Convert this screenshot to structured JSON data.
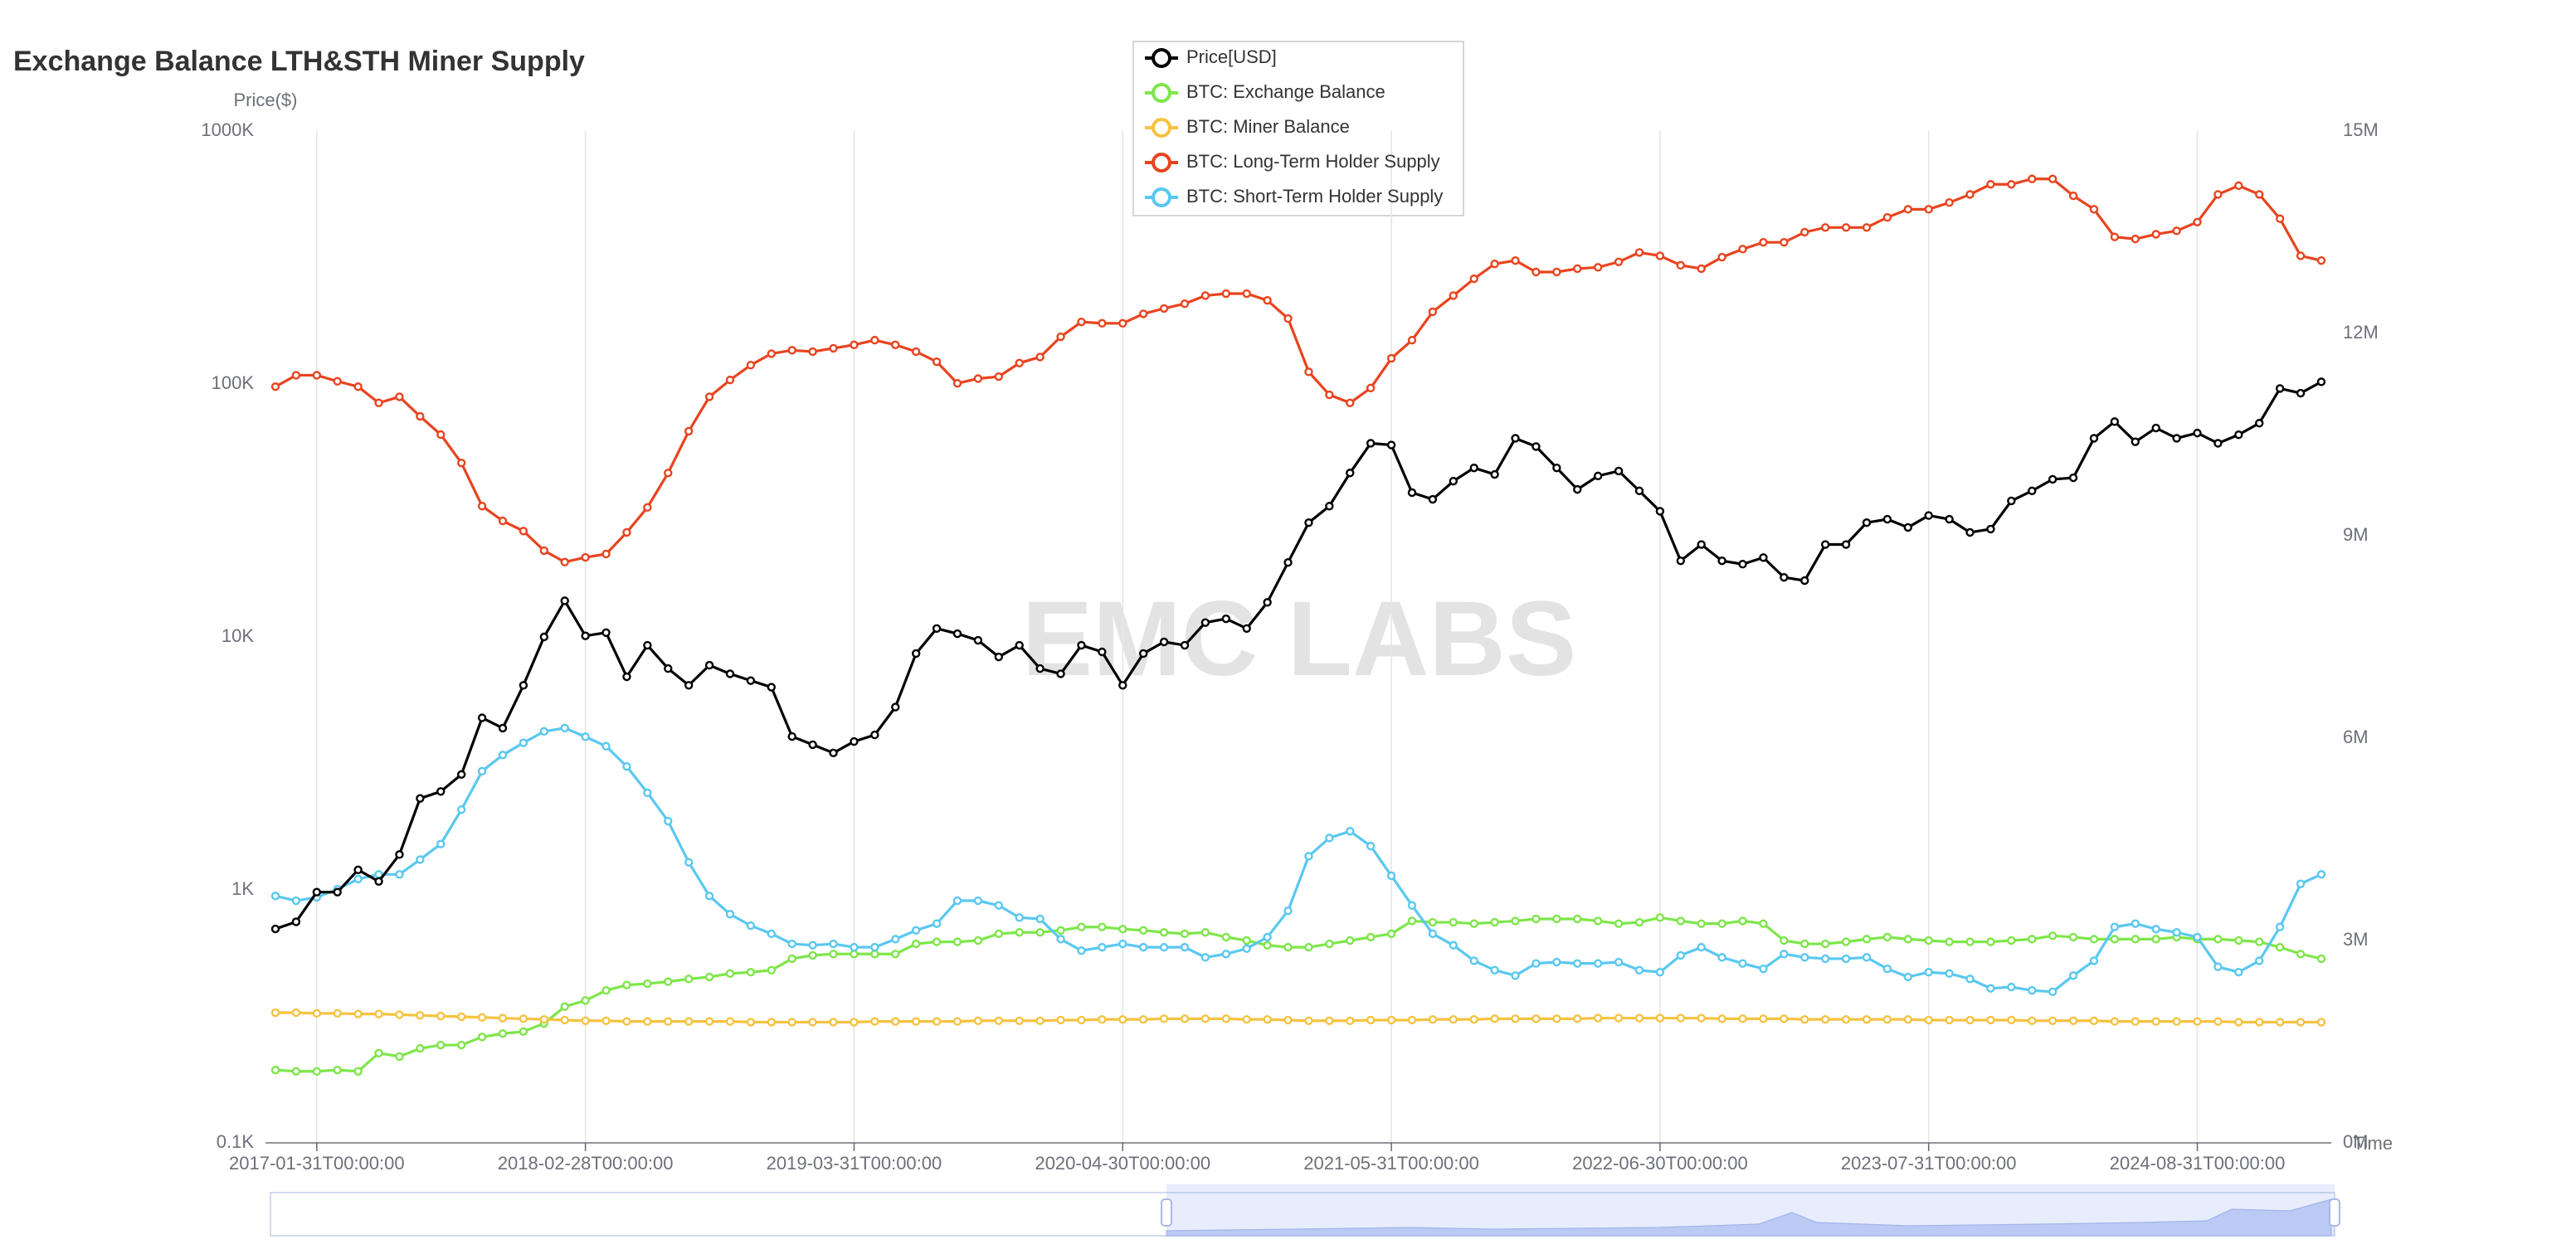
{
  "chart_data": {
    "type": "line",
    "title": "Exchange Balance LTH&STH Miner Supply",
    "watermark": "EMC LABS",
    "ylabel": "Price($)",
    "xlabel": "Time",
    "ylog": true,
    "grid": true,
    "legend": "top",
    "ylim": [
      100,
      1000000
    ],
    "yticks": [
      {
        "value": 100,
        "label": "0.1K"
      },
      {
        "value": 1000,
        "label": "1K"
      },
      {
        "value": 10000,
        "label": "10K"
      },
      {
        "value": 100000,
        "label": "100K"
      },
      {
        "value": 1000000,
        "label": "1000K"
      }
    ],
    "y2lim": [
      0,
      15000000
    ],
    "y2ticks": [
      {
        "value": 0,
        "label": "0M"
      },
      {
        "value": 3000000,
        "label": "3M"
      },
      {
        "value": 6000000,
        "label": "6M"
      },
      {
        "value": 9000000,
        "label": "9M"
      },
      {
        "value": 12000000,
        "label": "12M"
      },
      {
        "value": 15000000,
        "label": "15M"
      }
    ],
    "categories": [
      null,
      null,
      "2017-01-31T00:00:00",
      null,
      null,
      null,
      null,
      null,
      null,
      null,
      null,
      null,
      null,
      null,
      null,
      "2018-02-28T00:00:00",
      null,
      null,
      null,
      null,
      null,
      null,
      null,
      null,
      null,
      null,
      null,
      null,
      "2019-03-31T00:00:00",
      null,
      null,
      null,
      null,
      null,
      null,
      null,
      null,
      null,
      null,
      null,
      null,
      "2020-04-30T00:00:00",
      null,
      null,
      null,
      null,
      null,
      null,
      null,
      null,
      null,
      null,
      null,
      null,
      "2021-05-31T00:00:00",
      null,
      null,
      null,
      null,
      null,
      null,
      null,
      null,
      null,
      null,
      null,
      null,
      "2022-06-30T00:00:00",
      null,
      null,
      null,
      null,
      null,
      null,
      null,
      null,
      null,
      null,
      null,
      null,
      "2023-07-31T00:00:00",
      null,
      null,
      null,
      null,
      null,
      null,
      null,
      null,
      null,
      null,
      null,
      null,
      "2024-08-31T00:00:00",
      null,
      null,
      null,
      null,
      null,
      null
    ],
    "series": [
      {
        "name": "Price[USD]",
        "color": "#000000",
        "values": [
          701,
          748,
          980,
          980,
          1200,
          1080,
          1380,
          2300,
          2450,
          2860,
          4790,
          4360,
          6440,
          10000,
          13900,
          10100,
          10400,
          6960,
          9270,
          7500,
          6440,
          7730,
          7150,
          6720,
          6330,
          4040,
          3750,
          3480,
          3860,
          4100,
          5280,
          8600,
          10800,
          10300,
          9700,
          8340,
          9270,
          7500,
          7150,
          9270,
          8730,
          6440,
          8600,
          9560,
          9270,
          11400,
          11800,
          10800,
          13700,
          19700,
          28300,
          32900,
          44500,
          58300,
          57400,
          37200,
          35000,
          41300,
          46600,
          43900,
          61000,
          56600,
          46600,
          38300,
          43300,
          45300,
          37800,
          31400,
          20000,
          23200,
          20000,
          19400,
          20600,
          17200,
          16700,
          23200,
          23200,
          28300,
          29200,
          27100,
          30200,
          29200,
          25900,
          26700,
          34500,
          37800,
          42000,
          42600,
          61000,
          71000,
          59100,
          67000,
          61000,
          64000,
          58300,
          63000,
          70000,
          96000,
          92000,
          102000
        ]
      },
      {
        "name": "BTC: Exchange Balance",
        "color": "#7ee64a",
        "axis": "y2",
        "values": [
          1080000,
          1060000,
          1060000,
          1080000,
          1060000,
          1330000,
          1280000,
          1400000,
          1450000,
          1450000,
          1570000,
          1620000,
          1650000,
          1770000,
          2020000,
          2110000,
          2260000,
          2340000,
          2360000,
          2390000,
          2430000,
          2460000,
          2510000,
          2530000,
          2560000,
          2730000,
          2780000,
          2800000,
          2800000,
          2800000,
          2800000,
          2950000,
          2980000,
          2980000,
          3000000,
          3100000,
          3120000,
          3120000,
          3150000,
          3200000,
          3200000,
          3170000,
          3150000,
          3120000,
          3100000,
          3120000,
          3050000,
          3000000,
          2930000,
          2900000,
          2900000,
          2950000,
          3000000,
          3050000,
          3100000,
          3290000,
          3270000,
          3270000,
          3250000,
          3270000,
          3290000,
          3320000,
          3320000,
          3320000,
          3290000,
          3250000,
          3270000,
          3340000,
          3290000,
          3250000,
          3250000,
          3290000,
          3250000,
          3000000,
          2950000,
          2950000,
          2980000,
          3020000,
          3050000,
          3020000,
          3000000,
          2980000,
          2980000,
          2980000,
          3000000,
          3020000,
          3070000,
          3050000,
          3020000,
          3020000,
          3020000,
          3020000,
          3050000,
          3020000,
          3020000,
          3000000,
          2980000,
          2900000,
          2800000,
          2730000
        ]
      },
      {
        "name": "BTC: Miner Balance",
        "color": "#f5c342",
        "axis": "y2",
        "values": [
          1930000,
          1930000,
          1920000,
          1920000,
          1910000,
          1910000,
          1900000,
          1890000,
          1880000,
          1870000,
          1860000,
          1850000,
          1840000,
          1830000,
          1820000,
          1810000,
          1810000,
          1800000,
          1800000,
          1800000,
          1800000,
          1800000,
          1800000,
          1790000,
          1790000,
          1790000,
          1790000,
          1790000,
          1790000,
          1800000,
          1800000,
          1800000,
          1800000,
          1800000,
          1810000,
          1810000,
          1810000,
          1810000,
          1820000,
          1820000,
          1830000,
          1830000,
          1830000,
          1840000,
          1840000,
          1840000,
          1840000,
          1830000,
          1830000,
          1820000,
          1810000,
          1810000,
          1810000,
          1820000,
          1820000,
          1820000,
          1830000,
          1830000,
          1830000,
          1840000,
          1840000,
          1840000,
          1840000,
          1840000,
          1850000,
          1850000,
          1850000,
          1850000,
          1850000,
          1850000,
          1840000,
          1840000,
          1840000,
          1840000,
          1830000,
          1830000,
          1830000,
          1830000,
          1830000,
          1830000,
          1820000,
          1820000,
          1820000,
          1820000,
          1820000,
          1810000,
          1810000,
          1810000,
          1810000,
          1800000,
          1800000,
          1800000,
          1800000,
          1800000,
          1800000,
          1790000,
          1790000,
          1790000,
          1790000,
          1790000
        ]
      },
      {
        "name": "BTC: Long-Term Holder Supply",
        "color": "#e8441f",
        "axis": "y2",
        "values": [
          11210000,
          11380000,
          11380000,
          11290000,
          11210000,
          10970000,
          11060000,
          10770000,
          10500000,
          10080000,
          9440000,
          9220000,
          9070000,
          8780000,
          8610000,
          8680000,
          8730000,
          9050000,
          9420000,
          9930000,
          10550000,
          11060000,
          11310000,
          11530000,
          11700000,
          11750000,
          11730000,
          11780000,
          11830000,
          11900000,
          11830000,
          11730000,
          11580000,
          11260000,
          11330000,
          11360000,
          11560000,
          11650000,
          11950000,
          12170000,
          12150000,
          12150000,
          12290000,
          12370000,
          12440000,
          12560000,
          12590000,
          12590000,
          12490000,
          12220000,
          11430000,
          11090000,
          10970000,
          11190000,
          11630000,
          11900000,
          12320000,
          12560000,
          12810000,
          13030000,
          13080000,
          12910000,
          12910000,
          12960000,
          12980000,
          13060000,
          13200000,
          13150000,
          13010000,
          12960000,
          13130000,
          13250000,
          13350000,
          13350000,
          13500000,
          13570000,
          13570000,
          13570000,
          13720000,
          13840000,
          13840000,
          13940000,
          14060000,
          14210000,
          14210000,
          14290000,
          14290000,
          14040000,
          13840000,
          13430000,
          13400000,
          13470000,
          13520000,
          13650000,
          14060000,
          14190000,
          14060000,
          13700000,
          13150000,
          13080000
        ]
      },
      {
        "name": "BTC: Short-Term Holder Supply",
        "color": "#5ac8f0",
        "axis": "y2",
        "values": [
          3660000,
          3590000,
          3640000,
          3760000,
          3910000,
          3980000,
          3980000,
          4200000,
          4430000,
          4940000,
          5510000,
          5750000,
          5930000,
          6100000,
          6150000,
          6020000,
          5880000,
          5580000,
          5190000,
          4770000,
          4160000,
          3660000,
          3390000,
          3220000,
          3100000,
          2950000,
          2930000,
          2950000,
          2900000,
          2900000,
          3020000,
          3150000,
          3250000,
          3590000,
          3590000,
          3520000,
          3340000,
          3320000,
          3020000,
          2850000,
          2900000,
          2950000,
          2900000,
          2900000,
          2900000,
          2750000,
          2800000,
          2880000,
          3050000,
          3440000,
          4250000,
          4520000,
          4620000,
          4400000,
          3960000,
          3520000,
          3100000,
          2930000,
          2700000,
          2560000,
          2480000,
          2660000,
          2680000,
          2660000,
          2660000,
          2680000,
          2560000,
          2530000,
          2780000,
          2900000,
          2750000,
          2660000,
          2580000,
          2800000,
          2750000,
          2730000,
          2730000,
          2750000,
          2580000,
          2460000,
          2530000,
          2510000,
          2430000,
          2290000,
          2310000,
          2260000,
          2240000,
          2480000,
          2700000,
          3200000,
          3250000,
          3170000,
          3120000,
          3050000,
          2610000,
          2530000,
          2700000,
          3200000,
          3840000,
          3980000
        ]
      }
    ]
  }
}
